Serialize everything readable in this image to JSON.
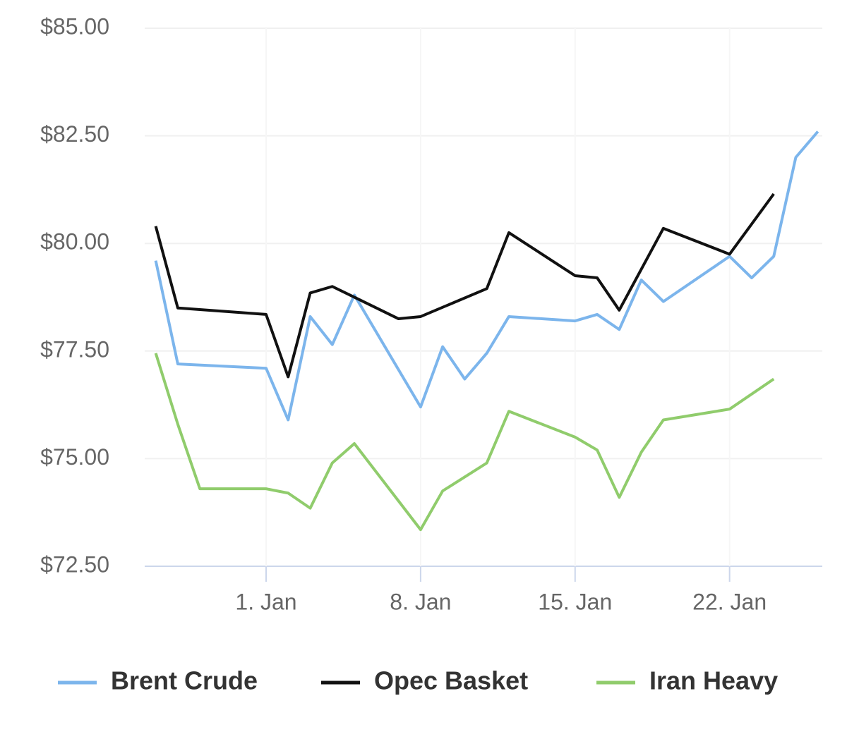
{
  "chart_data": {
    "type": "line",
    "xlim": [
      -4.5,
      26.2
    ],
    "xticks": [
      {
        "value": 1,
        "label": "1. Jan"
      },
      {
        "value": 8,
        "label": "8. Jan"
      },
      {
        "value": 15,
        "label": "15. Jan"
      },
      {
        "value": 22,
        "label": "22. Jan"
      }
    ],
    "ylim": [
      72.5,
      85
    ],
    "yticks": [
      {
        "value": 72.5,
        "label": "$72.50"
      },
      {
        "value": 75,
        "label": "$75.00"
      },
      {
        "value": 77.5,
        "label": "$77.50"
      },
      {
        "value": 80,
        "label": "$80.00"
      },
      {
        "value": 82.5,
        "label": "$82.50"
      },
      {
        "value": 85,
        "label": "$85.00"
      }
    ],
    "grid": true,
    "legend": "bottom",
    "series": [
      {
        "name": "Brent Crude",
        "color": "#7cb5ec",
        "x": [
          -4,
          -3,
          1,
          2,
          3,
          4,
          5,
          8,
          9,
          10,
          11,
          12,
          15,
          16,
          17,
          18,
          19,
          22,
          23,
          24,
          25,
          26
        ],
        "values": [
          79.6,
          77.2,
          77.1,
          75.9,
          78.3,
          77.65,
          78.8,
          76.2,
          77.6,
          76.85,
          77.45,
          78.3,
          78.2,
          78.35,
          78.0,
          79.15,
          78.65,
          79.7,
          79.2,
          79.7,
          82.0,
          82.6
        ]
      },
      {
        "name": "Opec Basket",
        "color": "#111111",
        "x": [
          -4,
          -3,
          1,
          2,
          3,
          4,
          7,
          8,
          11,
          12,
          15,
          16,
          17,
          19,
          22,
          24
        ],
        "values": [
          80.4,
          78.5,
          78.35,
          76.9,
          78.85,
          79.0,
          78.25,
          78.3,
          78.95,
          80.25,
          79.25,
          79.2,
          78.45,
          80.35,
          79.75,
          81.15
        ]
      },
      {
        "name": "Iran Heavy",
        "color": "#90cc6c",
        "x": [
          -4,
          -3,
          -2,
          1,
          2,
          3,
          4,
          5,
          8,
          9,
          11,
          12,
          15,
          16,
          17,
          18,
          19,
          22,
          24
        ],
        "values": [
          77.45,
          75.8,
          74.3,
          74.3,
          74.2,
          73.85,
          74.9,
          75.35,
          73.35,
          74.25,
          74.9,
          76.1,
          75.5,
          75.2,
          74.1,
          75.15,
          75.9,
          76.15,
          76.85
        ]
      }
    ]
  }
}
